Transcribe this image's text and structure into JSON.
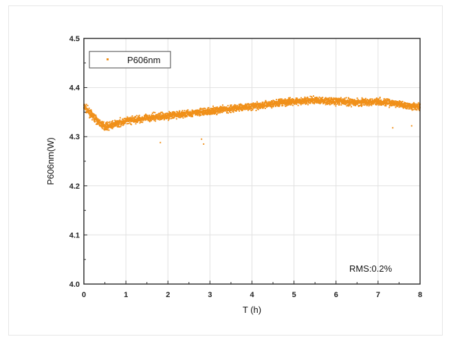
{
  "colors": {
    "series": "#f0901a",
    "grid": "#e0e0e0",
    "axis": "#222222"
  },
  "chart_data": {
    "type": "scatter",
    "xlabel": "T (h)",
    "ylabel": "P606nm(W)",
    "xlim": [
      0,
      8
    ],
    "ylim": [
      4.0,
      4.5
    ],
    "x_ticks": [
      "0",
      "1",
      "2",
      "3",
      "4",
      "5",
      "6",
      "7",
      "8"
    ],
    "y_ticks": [
      "4.0",
      "4.1",
      "4.2",
      "4.3",
      "4.4",
      "4.5"
    ],
    "grid": true,
    "legend_position": "top-left",
    "annotation": "RMS:0.2%",
    "series": [
      {
        "name": "P606nm",
        "trend": {
          "x": [
            0,
            0.1,
            0.2,
            0.3,
            0.4,
            0.5,
            0.6,
            0.8,
            1.0,
            1.5,
            2.0,
            2.5,
            3.0,
            3.5,
            4.0,
            4.5,
            5.0,
            5.5,
            6.0,
            6.5,
            7.0,
            7.5,
            8.0
          ],
          "y": [
            4.362,
            4.352,
            4.343,
            4.334,
            4.326,
            4.321,
            4.322,
            4.327,
            4.332,
            4.338,
            4.343,
            4.347,
            4.352,
            4.357,
            4.362,
            4.367,
            4.372,
            4.374,
            4.372,
            4.37,
            4.372,
            4.366,
            4.36
          ]
        },
        "spread": 0.014,
        "outliers": [
          {
            "x": 1.82,
            "y": 4.288
          },
          {
            "x": 2.85,
            "y": 4.285
          },
          {
            "x": 2.8,
            "y": 4.295
          },
          {
            "x": 7.35,
            "y": 4.318
          },
          {
            "x": 7.8,
            "y": 4.322
          }
        ]
      }
    ]
  }
}
